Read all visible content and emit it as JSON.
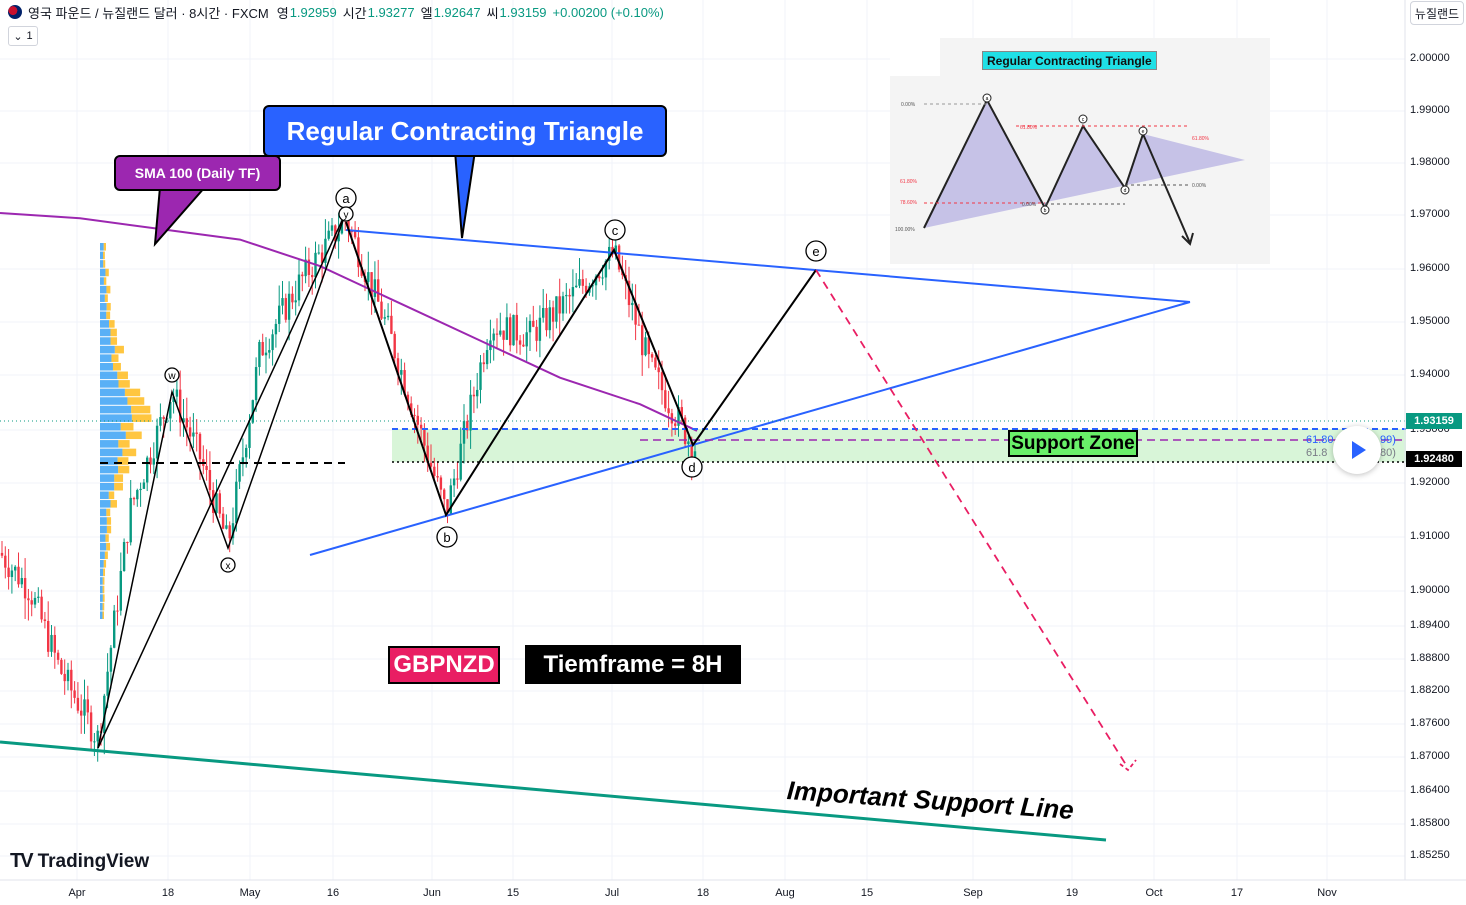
{
  "header": {
    "symbol": "영국 파운드 / 뉴질랜드 달러 · 8시간 · FXCM",
    "open_label": "영",
    "open": "1.92959",
    "high_label": "시간",
    "high": "1.93277",
    "low_label": "엘",
    "low": "1.92647",
    "close_label": "씨",
    "close": "1.93159",
    "change": "+0.00200 (+0.10%)",
    "interval_count": "1",
    "currency_button": "뉴질랜드"
  },
  "price_axis": {
    "ticks": [
      "2.00000",
      "1.99000",
      "1.98000",
      "1.97000",
      "1.96000",
      "1.95000",
      "1.94000",
      "1.93000",
      "1.92000",
      "1.91000",
      "1.90000",
      "1.89400",
      "1.88800",
      "1.88200",
      "1.87600",
      "1.87000",
      "1.86400",
      "1.85800",
      "1.85250"
    ],
    "current_price": "1.93159",
    "support_price": "1.92480"
  },
  "time_axis": {
    "ticks": [
      "Apr",
      "18",
      "May",
      "16",
      "Jun",
      "15",
      "Jul",
      "18",
      "Aug",
      "15",
      "Sep",
      "19",
      "Oct",
      "17",
      "Nov"
    ]
  },
  "annotations": {
    "callout_triangle": "Regular Contracting Triangle",
    "callout_sma": "SMA 100 (Daily TF)",
    "symbol_tag": "GBPNZD",
    "timeframe_tag": "Tiemframe = 8H",
    "support_zone": "Support Zone",
    "important_support": "Important Support Line",
    "fib_upper": "61.80",
    "fib_upper_val": "99)",
    "fib_lower": "61.8",
    "fib_lower_val": "80)",
    "wave_labels": [
      "a",
      "b",
      "c",
      "d",
      "e",
      "w",
      "x",
      "y"
    ]
  },
  "inset": {
    "title": "Regular Contracting Triangle",
    "labels": [
      "0.00%",
      "61.80%",
      "78.60%",
      "100.00%",
      "61.80%",
      "0.00%",
      "0.00%",
      "61.80%"
    ],
    "wave_labels": [
      "a",
      "b",
      "c",
      "d",
      "e"
    ]
  },
  "logo": {
    "text": "TradingView",
    "mark": "TV"
  },
  "colors": {
    "up": "#089981",
    "down": "#f23645",
    "sma": "#9c27b0",
    "triangle": "#2962ff",
    "support_zone_fill": "#d8f5d8",
    "support_line": "#089981",
    "projection": "#e91e63"
  },
  "chart_data": {
    "type": "candlestick",
    "symbol": "GBPNZD",
    "ylim": [
      1.8525,
      2.0
    ],
    "x": [
      "Apr",
      "18",
      "May",
      "16",
      "Jun",
      "15",
      "Jul",
      "18",
      "Aug",
      "15",
      "Sep",
      "19",
      "Oct",
      "17",
      "Nov"
    ],
    "sma100_daily": [
      1.971,
      1.97,
      1.968,
      1.966,
      1.961,
      1.954,
      1.947,
      1.94,
      1.935,
      1.93
    ],
    "waves": [
      {
        "label": "w",
        "price": 1.9375
      },
      {
        "label": "x",
        "price": 1.9085
      },
      {
        "label": "y",
        "price": 1.97
      },
      {
        "label": "a",
        "price": 1.969
      },
      {
        "label": "b",
        "price": 1.9145
      },
      {
        "label": "c",
        "price": 1.9635
      },
      {
        "label": "d",
        "price": 1.9268
      },
      {
        "label": "e",
        "price": 1.9598
      }
    ],
    "support_zone": [
      1.9248,
      1.93
    ],
    "important_support_line": [
      1.872,
      1.856
    ],
    "projection_target": 1.8675,
    "current_price": 1.93159
  }
}
